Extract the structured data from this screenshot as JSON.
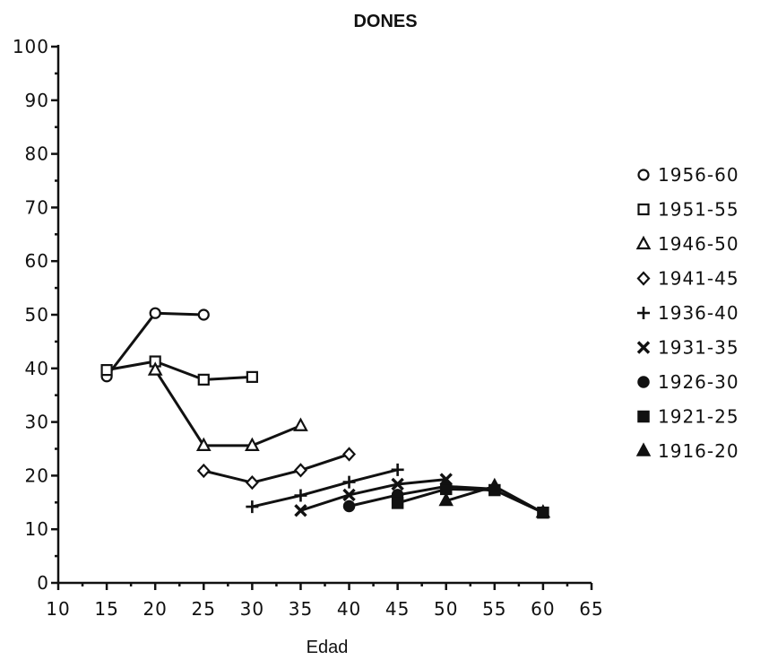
{
  "chart_data": {
    "type": "line",
    "title": "DONES",
    "xlabel": "Edad",
    "ylabel": "",
    "xlim": [
      10,
      65
    ],
    "ylim": [
      0,
      100
    ],
    "x_ticks": [
      10,
      15,
      20,
      25,
      30,
      35,
      40,
      45,
      50,
      55,
      60,
      65
    ],
    "y_ticks": [
      0,
      10,
      20,
      30,
      40,
      50,
      60,
      70,
      80,
      90,
      100
    ],
    "legend_position": "right",
    "grid": false,
    "series": [
      {
        "name": "1956-60",
        "marker": "circle-open",
        "x": [
          15,
          20,
          25
        ],
        "y": [
          38.5,
          50.3,
          50.0
        ]
      },
      {
        "name": "1951-55",
        "marker": "square-open",
        "x": [
          15,
          20,
          25,
          30
        ],
        "y": [
          39.7,
          41.3,
          37.9,
          38.4
        ]
      },
      {
        "name": "1946-50",
        "marker": "triangle-open",
        "x": [
          20,
          25,
          30,
          35
        ],
        "y": [
          39.7,
          25.6,
          25.6,
          29.3
        ]
      },
      {
        "name": "1941-45",
        "marker": "diamond-open",
        "x": [
          25,
          30,
          35,
          40
        ],
        "y": [
          20.9,
          18.7,
          21.0,
          24.0
        ]
      },
      {
        "name": "1936-40",
        "marker": "plus",
        "x": [
          30,
          35,
          40,
          45
        ],
        "y": [
          14.2,
          16.3,
          18.8,
          21.1
        ]
      },
      {
        "name": "1931-35",
        "marker": "x",
        "x": [
          35,
          40,
          45,
          50
        ],
        "y": [
          13.5,
          16.4,
          18.4,
          19.3
        ]
      },
      {
        "name": "1926-30",
        "marker": "circle-filled",
        "x": [
          40,
          45,
          50,
          55
        ],
        "y": [
          14.3,
          16.4,
          18.0,
          17.5
        ]
      },
      {
        "name": "1921-25",
        "marker": "square-filled",
        "x": [
          45,
          50,
          55,
          60
        ],
        "y": [
          14.9,
          17.5,
          17.3,
          13.1
        ]
      },
      {
        "name": "1916-20",
        "marker": "triangle-filled",
        "x": [
          50,
          55,
          60
        ],
        "y": [
          15.3,
          18.0,
          13.1
        ]
      }
    ]
  }
}
